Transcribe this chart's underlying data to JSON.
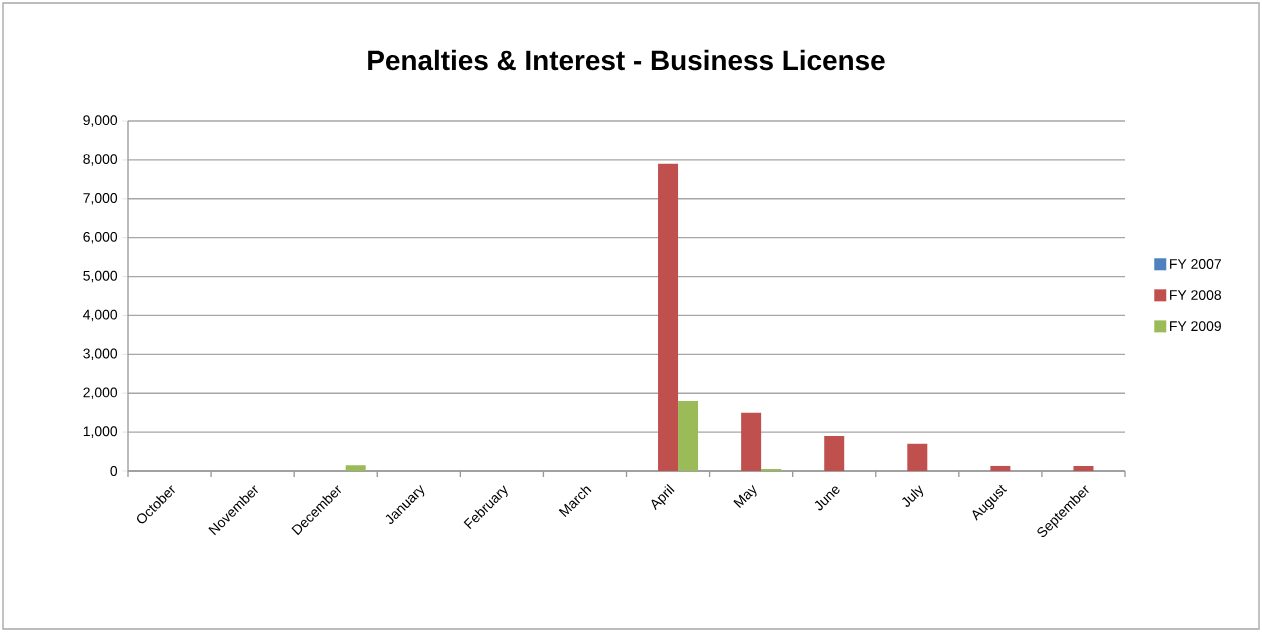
{
  "chart_data": {
    "type": "bar",
    "title": "Penalties & Interest - Business License",
    "categories": [
      "October",
      "November",
      "December",
      "January",
      "February",
      "March",
      "April",
      "May",
      "June",
      "July",
      "August",
      "September"
    ],
    "series": [
      {
        "name": "FY 2007",
        "color": "#4f81bd",
        "values": [
          0,
          0,
          0,
          0,
          0,
          0,
          0,
          0,
          0,
          0,
          0,
          0
        ]
      },
      {
        "name": "FY 2008",
        "color": "#c0504d",
        "values": [
          0,
          0,
          0,
          0,
          0,
          0,
          7900,
          1500,
          900,
          700,
          130,
          130
        ]
      },
      {
        "name": "FY 2009",
        "color": "#9bbb59",
        "values": [
          0,
          0,
          150,
          0,
          0,
          0,
          1800,
          50,
          0,
          0,
          0,
          0
        ]
      }
    ],
    "ylim": [
      0,
      9000
    ],
    "yticks": [
      {
        "value": 0,
        "label": "0"
      },
      {
        "value": 1000,
        "label": "1,000"
      },
      {
        "value": 2000,
        "label": "2,000"
      },
      {
        "value": 3000,
        "label": "3,000"
      },
      {
        "value": 4000,
        "label": "4,000"
      },
      {
        "value": 5000,
        "label": "5,000"
      },
      {
        "value": 6000,
        "label": "6,000"
      },
      {
        "value": 7000,
        "label": "7,000"
      },
      {
        "value": 8000,
        "label": "8,000"
      },
      {
        "value": 9000,
        "label": "9,000"
      }
    ],
    "grid": "y",
    "legend": "right"
  }
}
